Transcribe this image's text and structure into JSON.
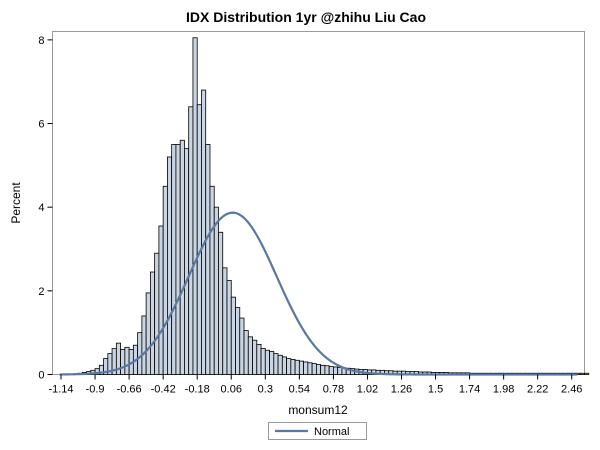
{
  "chart_data": {
    "type": "bar",
    "subtype": "histogram",
    "title": "IDX Distribution 1yr @zhihu Liu Cao",
    "xlabel": "monsum12",
    "ylabel": "Percent",
    "xlim": [
      -1.2,
      2.55
    ],
    "ylim": [
      0,
      8.2
    ],
    "x_ticks": [
      "-1.14",
      "-0.9",
      "-0.66",
      "-0.42",
      "-0.18",
      "0.06",
      "0.3",
      "0.54",
      "0.78",
      "1.02",
      "1.26",
      "1.5",
      "1.74",
      "1.98",
      "2.22",
      "2.46"
    ],
    "y_ticks": [
      "0",
      "2",
      "4",
      "6",
      "8"
    ],
    "bin_width": 0.03,
    "bin_start": -1.08,
    "values": [
      0.01,
      0.02,
      0.03,
      0.05,
      0.07,
      0.1,
      0.14,
      0.22,
      0.38,
      0.5,
      0.62,
      0.75,
      0.6,
      0.65,
      0.6,
      0.7,
      1.0,
      1.4,
      1.95,
      2.45,
      2.9,
      3.55,
      4.5,
      5.2,
      5.5,
      5.5,
      5.6,
      5.4,
      6.4,
      8.05,
      6.45,
      6.8,
      5.5,
      4.5,
      4.0,
      3.4,
      2.55,
      2.25,
      1.85,
      1.6,
      1.35,
      1.05,
      0.9,
      0.82,
      0.72,
      0.62,
      0.58,
      0.55,
      0.5,
      0.46,
      0.42,
      0.38,
      0.36,
      0.34,
      0.32,
      0.3,
      0.28,
      0.26,
      0.24,
      0.22,
      0.21,
      0.19,
      0.18,
      0.17,
      0.16,
      0.15,
      0.14,
      0.13,
      0.12,
      0.12,
      0.11,
      0.11,
      0.1,
      0.1,
      0.09,
      0.09,
      0.08,
      0.08,
      0.08,
      0.07,
      0.07,
      0.07,
      0.06,
      0.06,
      0.06,
      0.05,
      0.05,
      0.05,
      0.05,
      0.04,
      0.04,
      0.04,
      0.04,
      0.04,
      0.03,
      0.03,
      0.03,
      0.03,
      0.03,
      0.03,
      0.03,
      0.03,
      0.03,
      0.03,
      0.03,
      0.03,
      0.03,
      0.03,
      0.03,
      0.03,
      0.03,
      0.03,
      0.03,
      0.03,
      0.03,
      0.03,
      0.03,
      0.03,
      0.03,
      0.03,
      0.03,
      0.03
    ],
    "normal_curve": {
      "name": "Normal",
      "mean": 0.07,
      "sd": 0.31,
      "peak_percent": 3.87
    },
    "legend": [
      "Normal"
    ],
    "legend_position": "bottom-center",
    "bar_fill": "#c9d5e2",
    "bar_edge": "#000000",
    "curve_color": "#5a78a0",
    "grid": false
  }
}
